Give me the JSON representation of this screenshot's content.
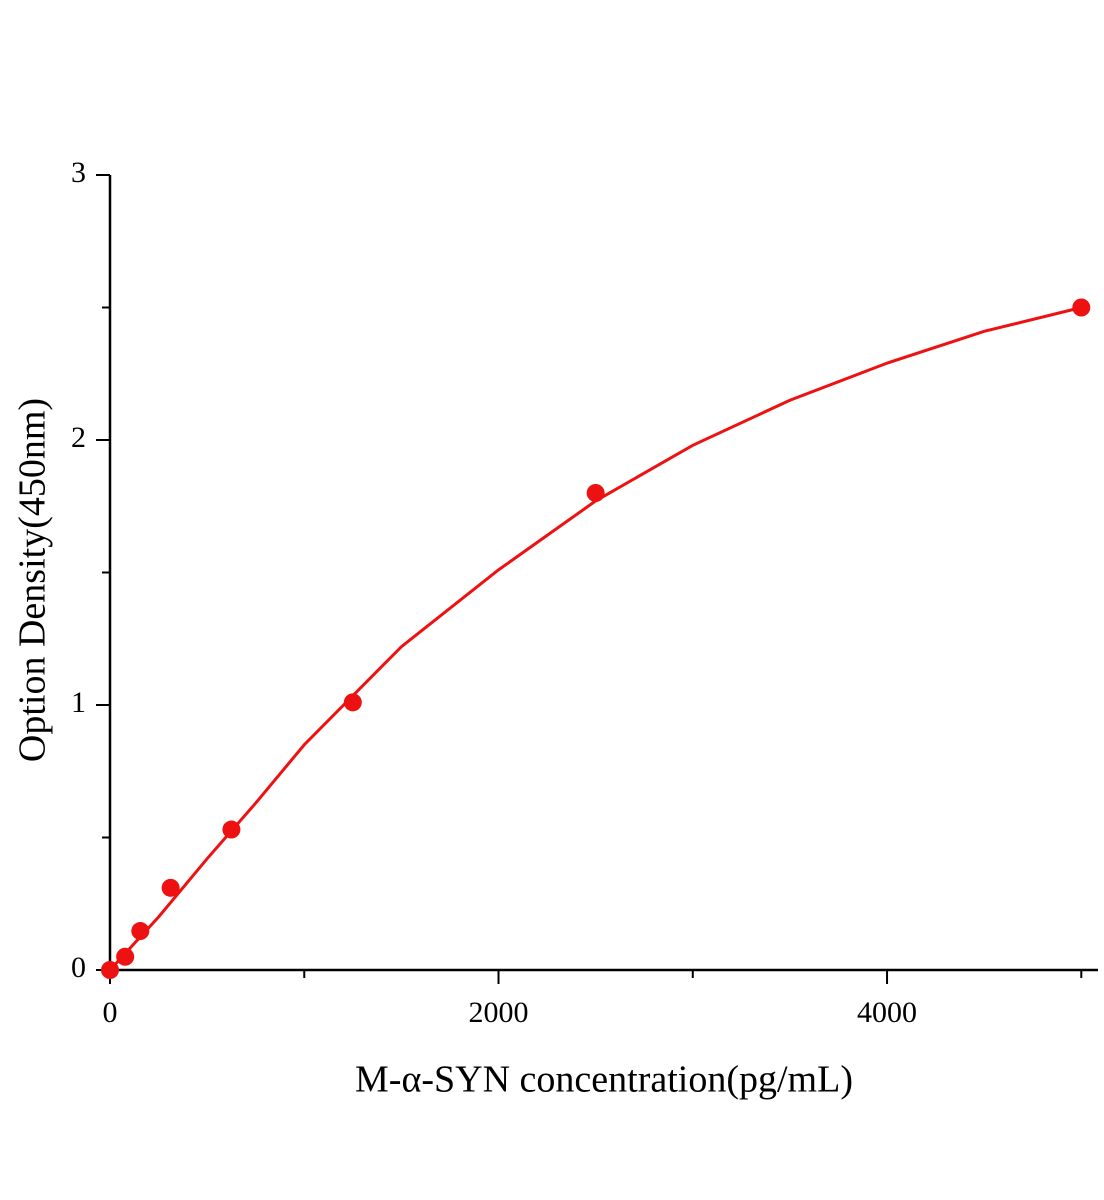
{
  "chart_data": {
    "type": "scatter",
    "x_label": "M-α-SYN concentration(pg/mL)",
    "y_label": "Option Density(450nm)",
    "xlim": [
      0,
      5086
    ],
    "xticks": [
      0,
      2000,
      4000
    ],
    "xminor": [
      1000,
      3000,
      5000
    ],
    "ylim": [
      0,
      3
    ],
    "yticks": [
      0,
      1,
      2,
      3
    ],
    "yminor": [
      0.5,
      1.5,
      2.5
    ],
    "series": [
      {
        "type": "scatter",
        "color": "#ee1111",
        "x": [
          0,
          78,
          156,
          312,
          625,
          1250,
          2500,
          5000
        ],
        "values": [
          0.0,
          0.05,
          0.147,
          0.31,
          0.53,
          1.01,
          1.8,
          2.5
        ]
      },
      {
        "type": "line",
        "color": "#ee1111",
        "x": [
          0,
          250,
          500,
          750,
          1000,
          1500,
          2000,
          2500,
          3000,
          3500,
          4000,
          4500,
          5000
        ],
        "values": [
          0.0,
          0.2,
          0.42,
          0.63,
          0.85,
          1.22,
          1.51,
          1.77,
          1.98,
          2.15,
          2.29,
          2.41,
          2.5
        ]
      }
    ]
  }
}
